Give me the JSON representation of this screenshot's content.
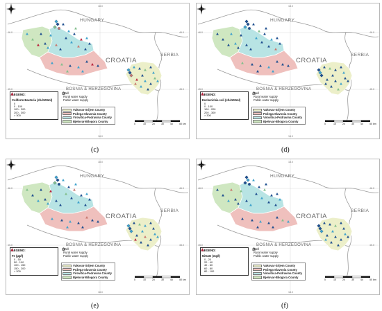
{
  "map_labels": {
    "hungary": "HUNGARY",
    "croatia": "CROATIA",
    "serbia": "SERBIA",
    "bosnia": "BOSNIA & HERZEGOVINA",
    "coord_top": "18.0",
    "coord_left_top": "46.0",
    "coord_left_bottom": "45.0",
    "coord_right_top": "46.0",
    "coord_right_bottom": "45.0",
    "coord_bottom": "18.0"
  },
  "legend": {
    "heading": "LEGEND:"
  },
  "water_supply": [
    {
      "label": "Well",
      "symbol": "triangle-icon"
    },
    {
      "label": "Rural water supply",
      "symbol": "diamond-icon"
    },
    {
      "label": "Public water supply",
      "symbol": "circle-icon"
    }
  ],
  "counties": [
    {
      "label": "Vukovar-Srijem County",
      "color": "#ecefc9"
    },
    {
      "label": "Požega-Slavonia County",
      "color": "#efc0bd"
    },
    {
      "label": "Virovitica-Podravina County",
      "color": "#b8e4e4"
    },
    {
      "label": "Bjelovar-Bilogora County",
      "color": "#cfe7c1"
    }
  ],
  "scale": {
    "ticks": [
      "0",
      "10",
      "20",
      "30",
      "40",
      "50 km"
    ]
  },
  "colors": {
    "class_1": "#1f4f8f",
    "class_2": "#3fa2cc",
    "class_3": "#82bf8c",
    "class_4": "#c8786f",
    "class_5": "#b8233d",
    "well_marker": "#2f7fb6"
  },
  "panels": [
    {
      "id": "c",
      "label": "(c)",
      "legend_title": "Coliform Bacteria (cfu/100ml)",
      "classes": [
        "0",
        "0 - 100",
        "100 - 200",
        "200 - 300",
        "> 300"
      ]
    },
    {
      "id": "d",
      "label": "(d)",
      "legend_title": "Escherichia coli (cfu/100ml)",
      "classes": [
        "0",
        "0 - 100",
        "100 - 200",
        "200 - 300",
        "> 300"
      ]
    },
    {
      "id": "e",
      "label": "(e)",
      "legend_title": "Fe (µg/l)",
      "classes": [
        "0 - 50",
        "50 - 100",
        "100 - 150",
        "150 - 200",
        "> 200"
      ]
    },
    {
      "id": "f",
      "label": "(f)",
      "legend_title": "Nitrate (mg/l)",
      "classes": [
        "0 - 20",
        "20 - 40",
        "40 - 60",
        "60 - 80",
        "80 - 100"
      ]
    }
  ]
}
